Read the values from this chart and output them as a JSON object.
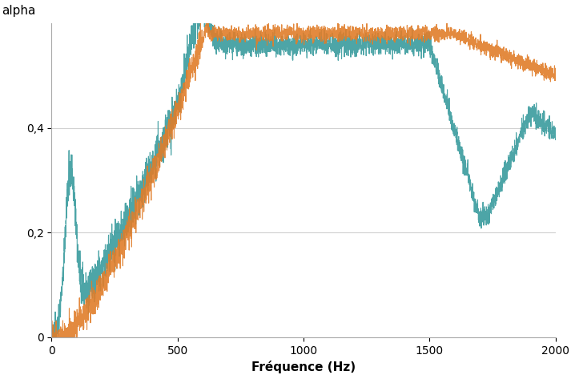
{
  "title": "",
  "xlabel": "Fréquence (Hz)",
  "ylabel": "alpha",
  "xlim": [
    0,
    2000
  ],
  "ylim": [
    0,
    0.6
  ],
  "yticks": [
    0,
    0.2,
    0.4
  ],
  "xticks": [
    0,
    500,
    1000,
    1500,
    2000
  ],
  "color_teal": "#3a9b9e",
  "color_orange": "#e07d2a",
  "grid_color": "#d0d0d0",
  "background_color": "#ffffff",
  "xlabel_fontsize": 11,
  "ylabel_fontsize": 11,
  "tick_fontsize": 10
}
